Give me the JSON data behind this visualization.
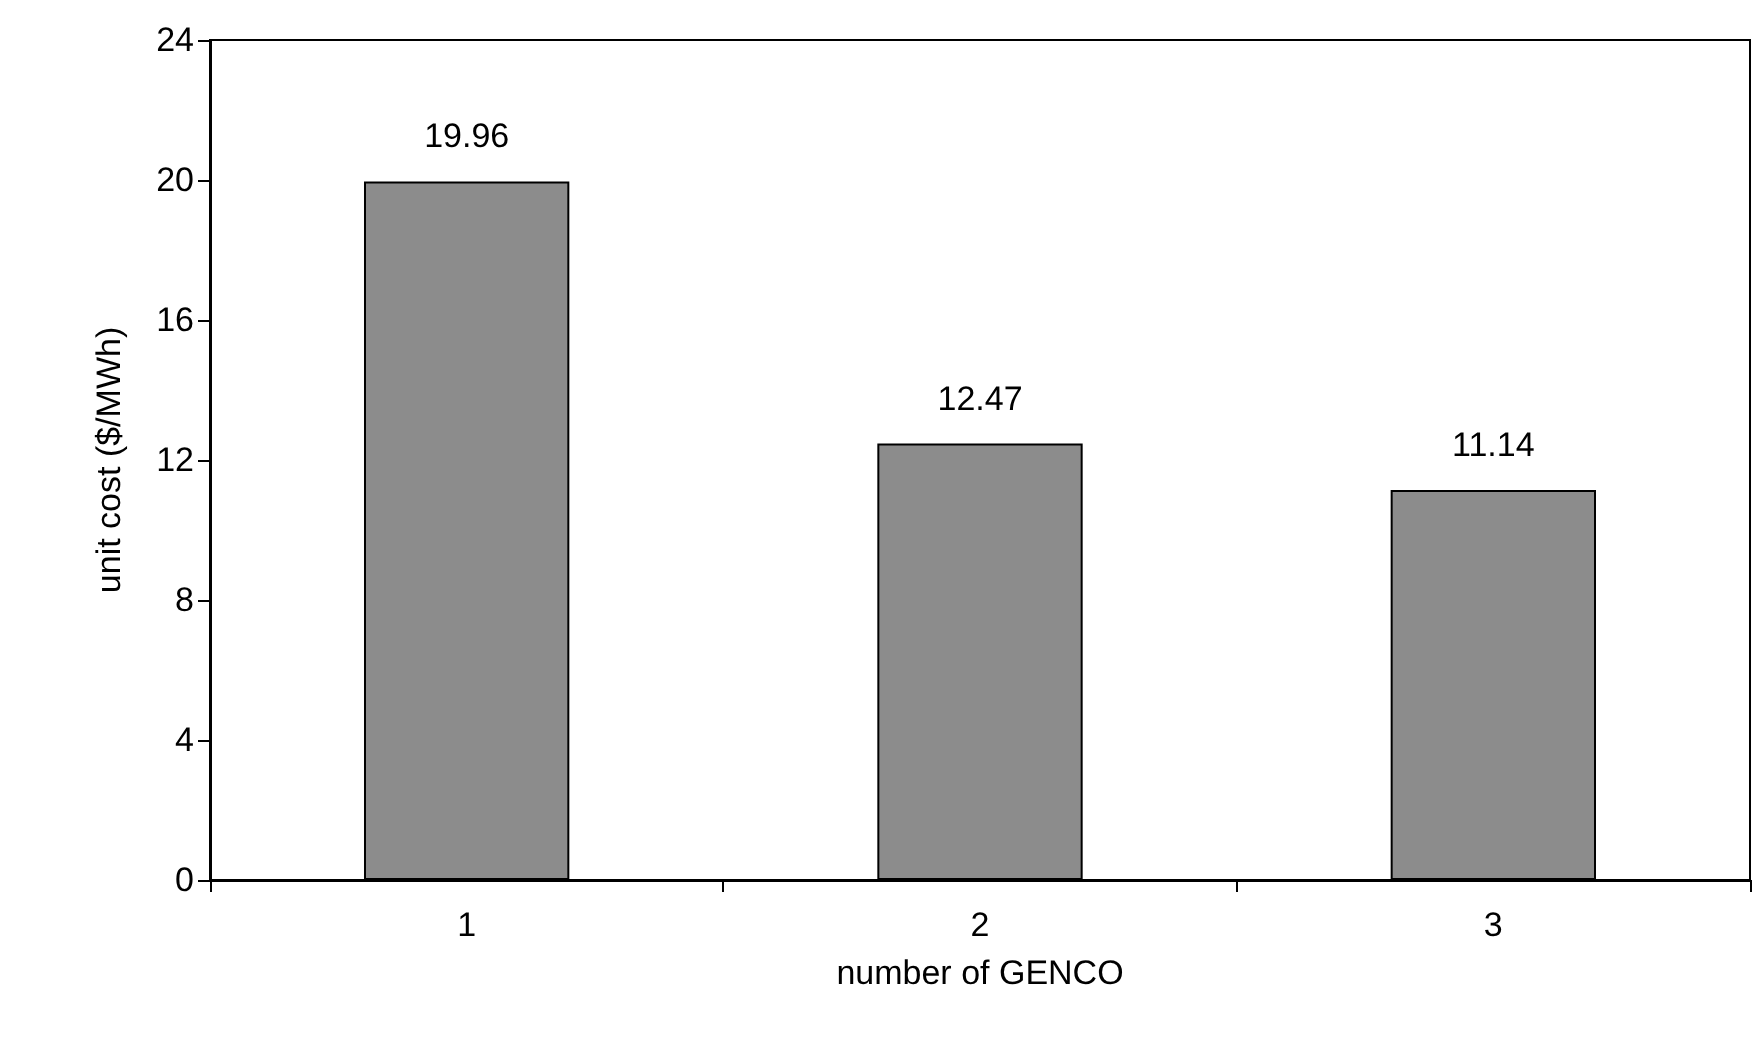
{
  "chart_data": {
    "type": "bar",
    "xlabel": "number of GENCO",
    "ylabel": "unit cost ($/MWh)",
    "categories": [
      "1",
      "2",
      "3"
    ],
    "values": [
      19.96,
      12.47,
      11.14
    ],
    "color": "#8c8c8c",
    "ylim": [
      0,
      24
    ],
    "yticks": [
      0,
      4,
      8,
      12,
      16,
      20,
      24
    ],
    "data_labels": true,
    "grid": false
  }
}
